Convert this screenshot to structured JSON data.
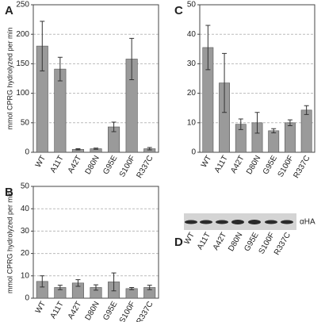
{
  "chart_data": [
    {
      "type": "bar",
      "label": "A",
      "ylabel": "mmol CPRG hydrolyzed per min",
      "categories": [
        "WT",
        "A11T",
        "A42T",
        "D80N",
        "G95E",
        "S100F",
        "R337C"
      ],
      "values": [
        180,
        141,
        5,
        6,
        43,
        158,
        6
      ],
      "errors": [
        42,
        20,
        1,
        1,
        8,
        35,
        2
      ],
      "color": "#9a9a9a",
      "ylim": [
        0,
        250
      ],
      "yticks": [
        0,
        50,
        100,
        150,
        200,
        250
      ],
      "grid": true
    },
    {
      "type": "bar",
      "label": "B",
      "ylabel": "mmol CPRG hydrolyzed per min",
      "categories": [
        "WT",
        "A11T",
        "A42T",
        "D80N",
        "G95E",
        "S100F",
        "R337C"
      ],
      "values": [
        7.5,
        4.8,
        6.8,
        4.8,
        7.3,
        4.3,
        4.8
      ],
      "errors": [
        2.5,
        1,
        1.5,
        1.2,
        4,
        0.5,
        1
      ],
      "color": "#9a9a9a",
      "ylim": [
        0,
        50
      ],
      "yticks": [
        0,
        10,
        20,
        30,
        40,
        50
      ],
      "grid": true
    },
    {
      "type": "bar",
      "label": "C",
      "categories": [
        "WT",
        "A11T",
        "A42T",
        "D80N",
        "G95E",
        "S100F",
        "R337C"
      ],
      "values": [
        35.5,
        23.5,
        9.5,
        10,
        7.3,
        10,
        14.3
      ],
      "errors": [
        7.5,
        10,
        1.8,
        3.5,
        0.7,
        1,
        1.5
      ],
      "color": "#9a9a9a",
      "ylim": [
        0,
        50
      ],
      "yticks": [
        0,
        10,
        20,
        30,
        40,
        50
      ],
      "grid": true
    }
  ],
  "blot": {
    "label": "D",
    "lanes": [
      "WT",
      "A11T",
      "A42T",
      "D80N",
      "G95E",
      "S100F",
      "R337C"
    ],
    "antibody": "αHA"
  }
}
